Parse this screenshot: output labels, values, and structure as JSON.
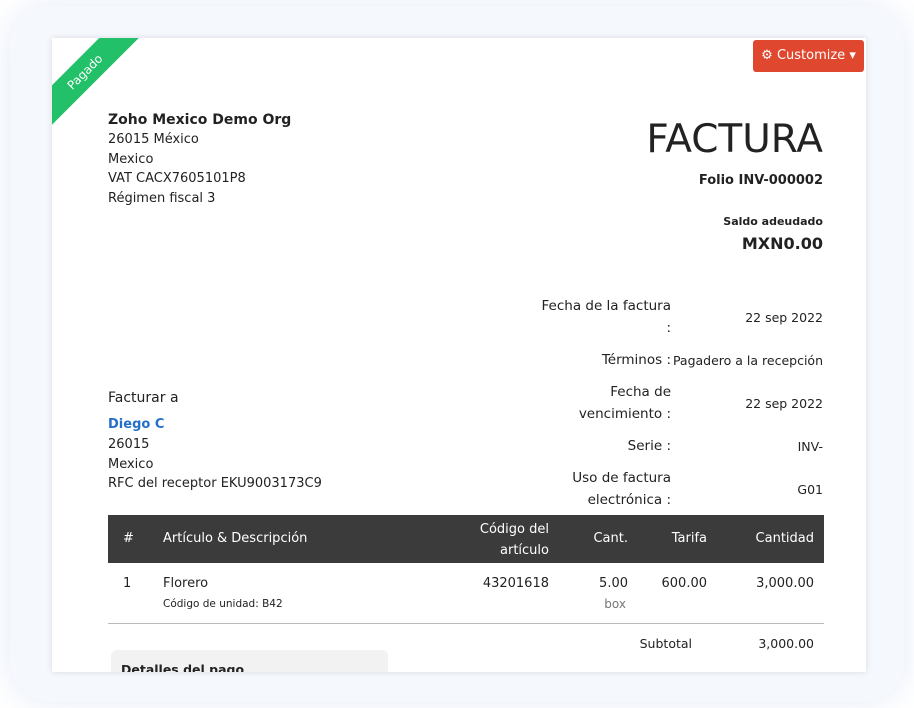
{
  "status": "Pagado",
  "customize": "Customize",
  "org": {
    "name": "Zoho Mexico Demo Org",
    "lines": [
      "26015  México",
      "Mexico",
      "VAT CACX7605101P8",
      "Régimen fiscal 3"
    ]
  },
  "title": "FACTURA",
  "folio": "Folio INV-000002",
  "balance": {
    "label": "Saldo adeudado",
    "value": "MXN0.00"
  },
  "details": [
    {
      "label": "Fecha de la factura :",
      "value": "22 sep 2022"
    },
    {
      "label": "Términos :",
      "value": "Pagadero a la recepción"
    },
    {
      "label": "Fecha de vencimiento :",
      "value": "22 sep 2022"
    },
    {
      "label": "Serie :",
      "value": "INV-"
    },
    {
      "label": "Uso de factura electrónica :",
      "value": "G01"
    }
  ],
  "bill_to": {
    "label": "Facturar a",
    "name": "Diego C",
    "lines": [
      "26015",
      "Mexico",
      "RFC del receptor EKU9003173C9"
    ]
  },
  "table": {
    "headers": [
      "#",
      "Artículo & Descripción",
      "Código del artículo",
      "Cant.",
      "Tarifa",
      "Cantidad"
    ],
    "rows": [
      {
        "index": "1",
        "item": "Florero",
        "note": "Código de unidad: B42",
        "code": "43201618",
        "qty": "5.00",
        "unit": "box",
        "rate": "600.00",
        "amount": "3,000.00"
      }
    ]
  },
  "subtotal": {
    "label": "Subtotal",
    "value": "3,000.00"
  },
  "payment": {
    "title": "Detalles del pago"
  }
}
